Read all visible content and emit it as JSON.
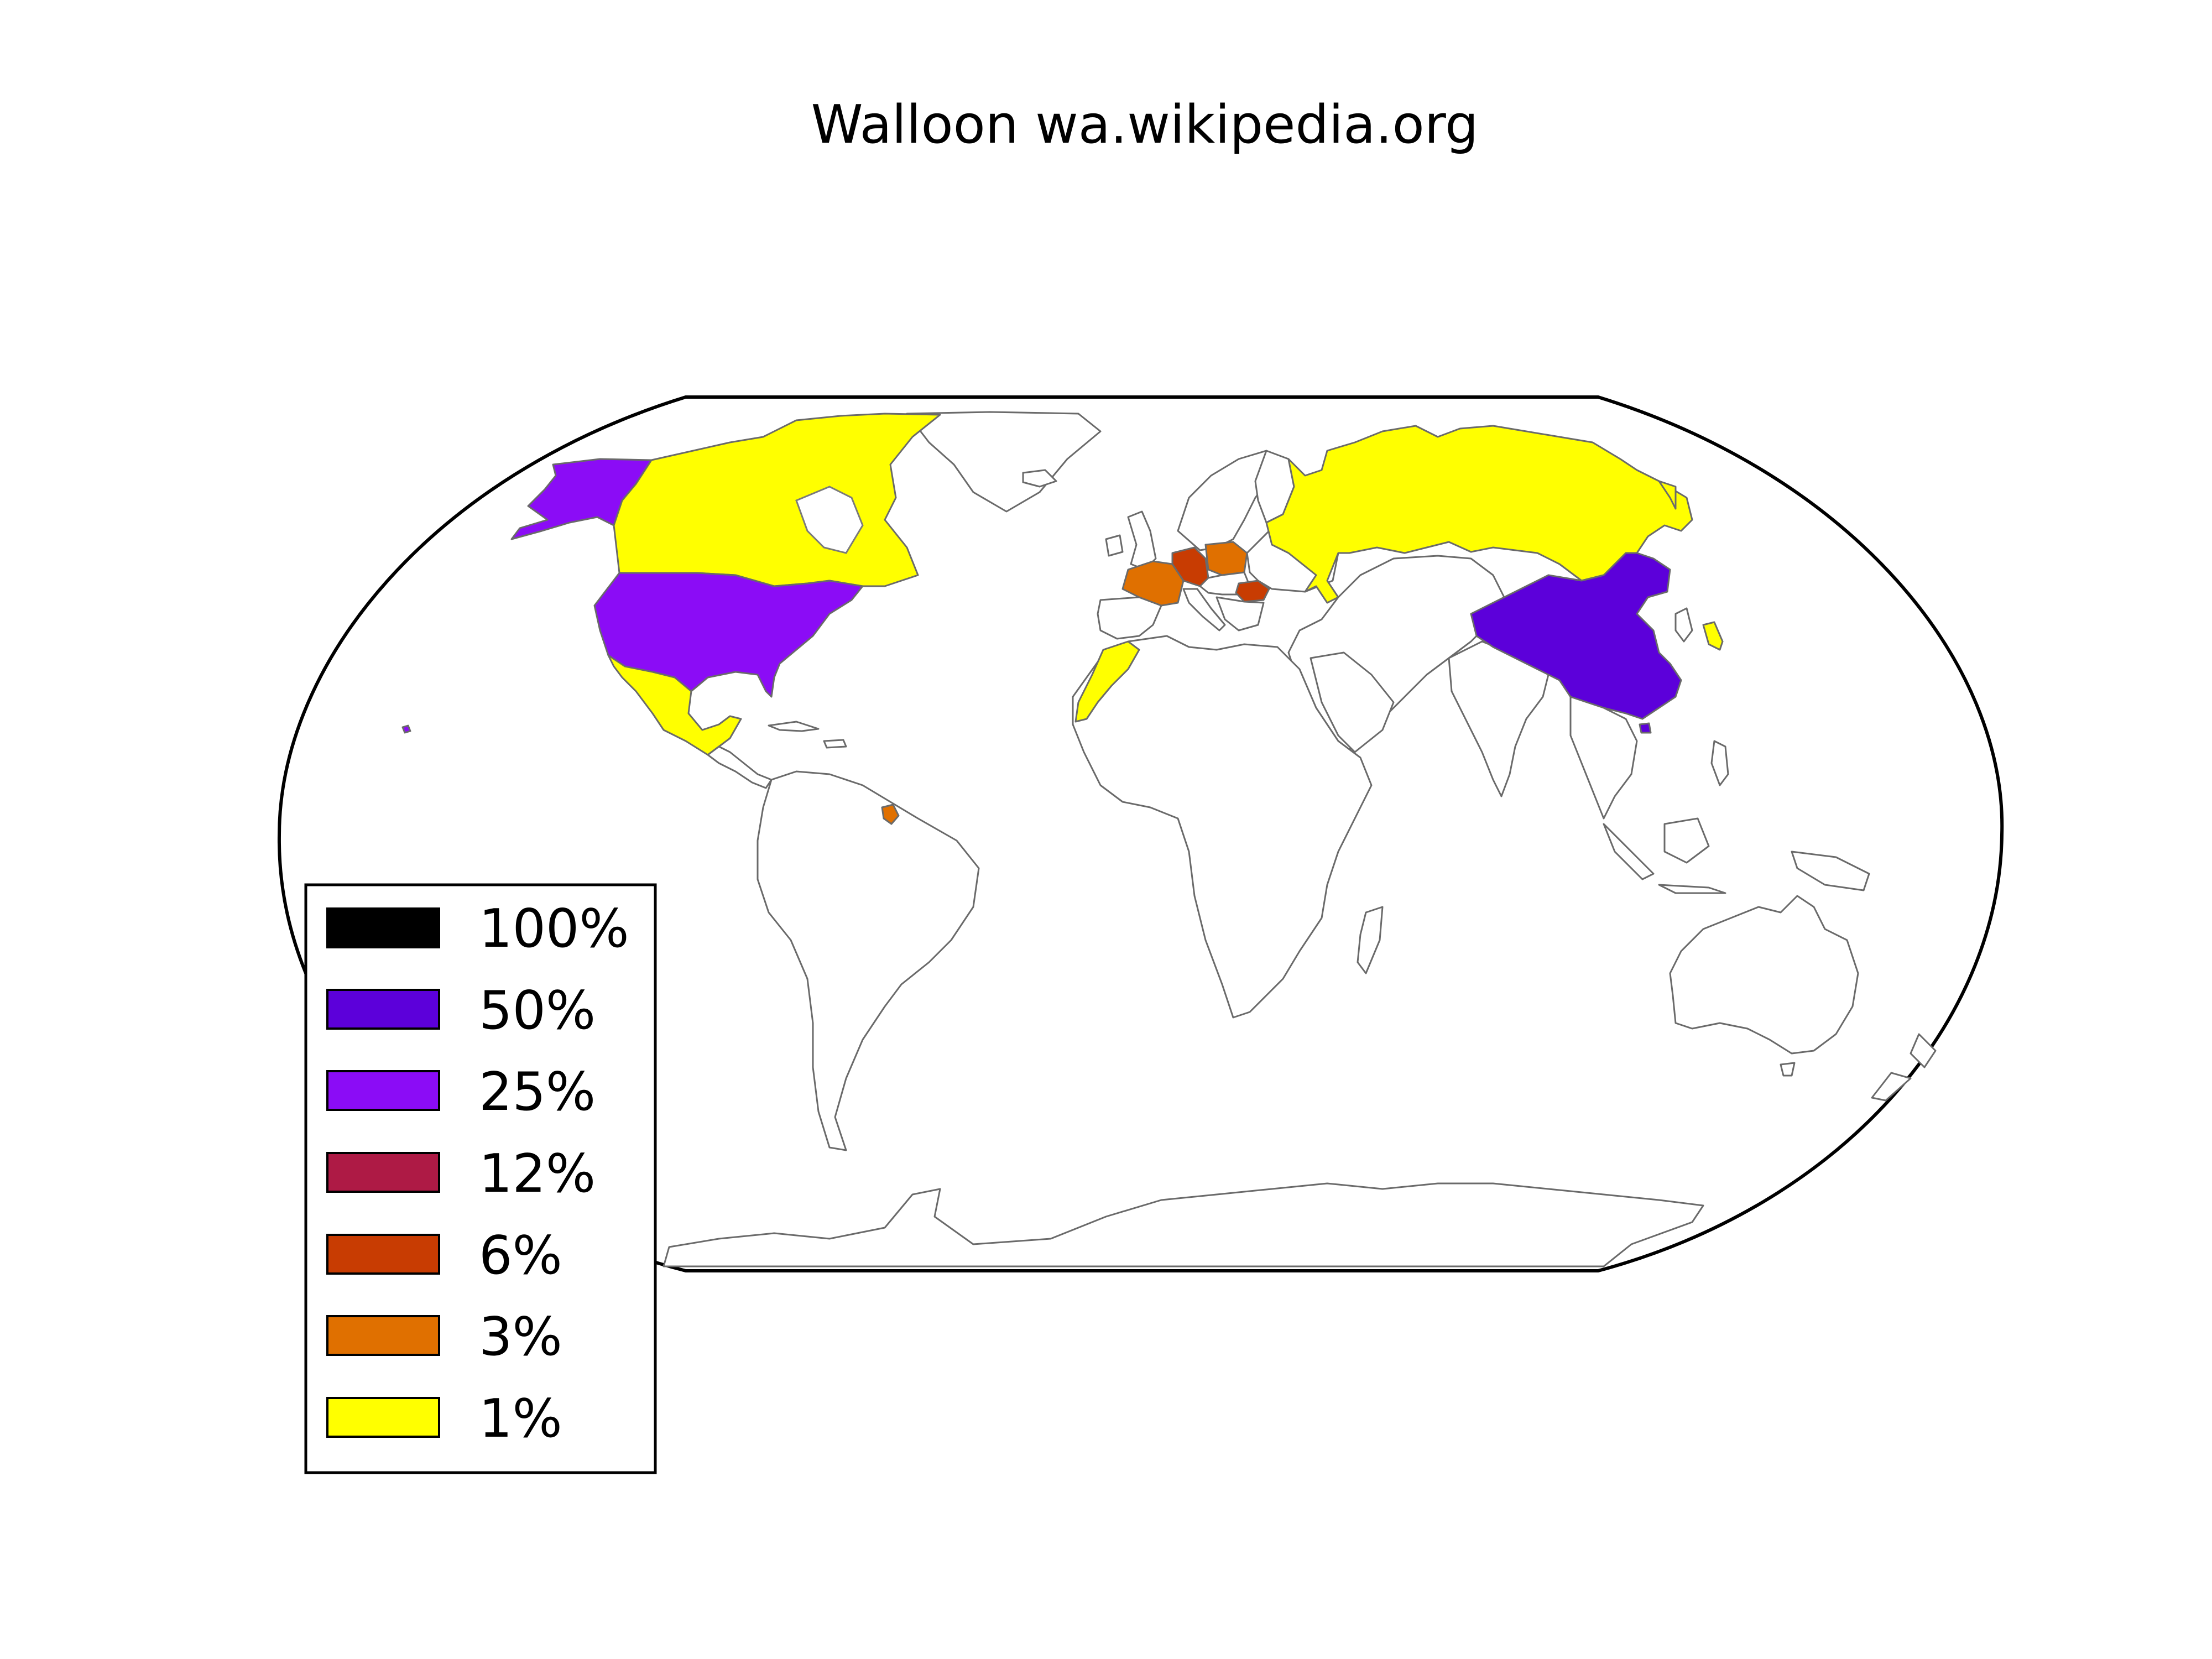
{
  "map": {
    "title": "Walloon wa.wikipedia.org",
    "projection": "Robinson world map",
    "legend": {
      "placement": "lower-left",
      "items": [
        {
          "label": "100%",
          "color": "#000000"
        },
        {
          "label": "50%",
          "color": "#5c00da"
        },
        {
          "label": "25%",
          "color": "#8b0cf6"
        },
        {
          "label": "12%",
          "color": "#ae1a45"
        },
        {
          "label": "6%",
          "color": "#c83c02"
        },
        {
          "label": "3%",
          "color": "#e07000"
        },
        {
          "label": "1%",
          "color": "#ffff00"
        }
      ]
    },
    "regions": [
      {
        "name": "Canada",
        "share": "1%",
        "color": "#ffff00"
      },
      {
        "name": "Russia",
        "share": "1%",
        "color": "#ffff00"
      },
      {
        "name": "Mexico",
        "share": "1%",
        "color": "#ffff00"
      },
      {
        "name": "Morocco",
        "share": "1%",
        "color": "#ffff00"
      },
      {
        "name": "Japan",
        "share": "1%",
        "color": "#ffff00"
      },
      {
        "name": "United States",
        "share": "25%",
        "color": "#8b0cf6"
      },
      {
        "name": "China",
        "share": "50%",
        "color": "#5c00da"
      },
      {
        "name": "France",
        "share": "3%",
        "color": "#e07000"
      },
      {
        "name": "Poland",
        "share": "3%",
        "color": "#e07000"
      },
      {
        "name": "French Guiana",
        "share": "3%",
        "color": "#e07000"
      },
      {
        "name": "Germany",
        "share": "6%",
        "color": "#c83c02"
      },
      {
        "name": "Romania",
        "share": "6%",
        "color": "#c83c02"
      }
    ]
  }
}
